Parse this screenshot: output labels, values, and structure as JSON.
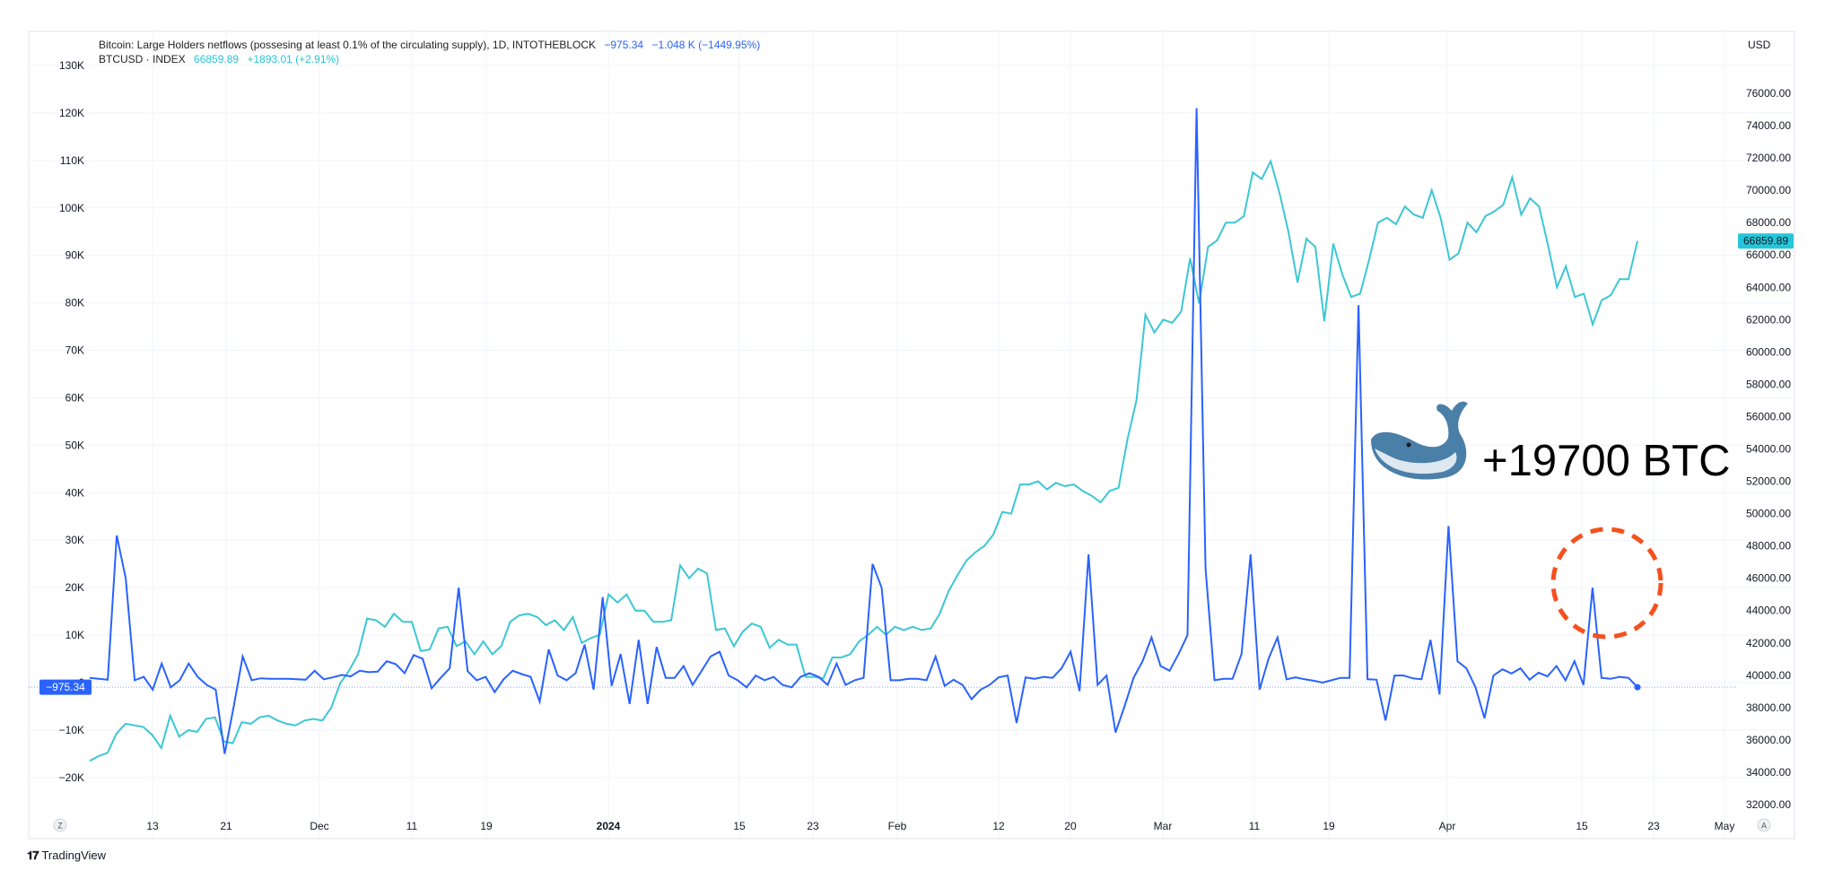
{
  "top_axis_cut_text": "",
  "legend": {
    "net_title": "Bitcoin: Large Holders netflows (possesing at least 0.1% of the circulating supply), 1D, INTOTHEBLOCK",
    "net_last": "−975.34",
    "net_change": "−1.048 K (−1449.95%)",
    "price_title": "BTCUSD · INDEX",
    "price_last": "66859.89",
    "price_change": "+1893.01 (+2.91%)"
  },
  "right_axis_unit": "USD",
  "left_last_label": "−975.34",
  "right_last_label": "66859.89",
  "annotation_text": "+19700 BTC",
  "whale_icon": "whale-icon",
  "highlight_circle": "dashed-red-circle",
  "branding": "TradingView",
  "axis_buttons": {
    "left": "Z",
    "right": "A"
  },
  "colors": {
    "netflow": "#2962ff",
    "price": "#3cc7d4",
    "circle": "#f4511e",
    "grid": "#f0f3fa",
    "axis_text": "#131722"
  },
  "chart_data": {
    "type": "line",
    "x_tick_labels": [
      "13",
      "21",
      "Dec",
      "11",
      "19",
      "2024",
      "15",
      "23",
      "Feb",
      "12",
      "20",
      "Mar",
      "11",
      "19",
      "Apr",
      "15",
      "23",
      "May"
    ],
    "left_axis": {
      "ticks": [
        "130K",
        "120K",
        "110K",
        "100K",
        "90K",
        "80K",
        "70K",
        "60K",
        "50K",
        "40K",
        "30K",
        "20K",
        "10K",
        "0",
        "−10K",
        "−20K"
      ],
      "ylim": [
        -25000,
        132000
      ]
    },
    "right_axis": {
      "ticks": [
        "76000.00",
        "74000.00",
        "72000.00",
        "70000.00",
        "68000.00",
        "66000.00",
        "64000.00",
        "62000.00",
        "60000.00",
        "58000.00",
        "56000.00",
        "54000.00",
        "52000.00",
        "50000.00",
        "48000.00",
        "46000.00",
        "44000.00",
        "42000.00",
        "40000.00",
        "38000.00",
        "36000.00",
        "34000.00",
        "32000.00"
      ],
      "ylim": [
        31500,
        76500
      ]
    },
    "series": [
      {
        "name": "Bitcoin: Large Holders netflows",
        "axis": "left",
        "values": [
          1000,
          800,
          600,
          31000,
          22000,
          500,
          1200,
          -1500,
          4000,
          -1000,
          500,
          4000,
          1200,
          -500,
          -1500,
          -15000,
          -5000,
          5500,
          500,
          900,
          800,
          800,
          800,
          700,
          600,
          2500,
          700,
          1100,
          1600,
          1300,
          2500,
          2200,
          2300,
          4500,
          3900,
          2000,
          5800,
          5000,
          -1200,
          1000,
          3000,
          20000,
          2400,
          500,
          1200,
          -2000,
          700,
          2500,
          1800,
          1200,
          -4000,
          7000,
          1500,
          500,
          2000,
          8000,
          -1500,
          18000,
          -700,
          6000,
          -4500,
          9000,
          -4500,
          7500,
          1000,
          1000,
          3500,
          -500,
          2500,
          5500,
          6500,
          1500,
          500,
          -1000,
          1500,
          500,
          1200,
          -500,
          -1000,
          1200,
          2000,
          1200,
          -500,
          4000,
          -500,
          500,
          1000,
          25000,
          20000,
          500,
          500,
          800,
          800,
          500,
          5500,
          -700,
          600,
          -500,
          -3500,
          -1500,
          -500,
          1100,
          1500,
          -8500,
          1100,
          800,
          1200,
          1000,
          3000,
          6500,
          -1800,
          27000,
          -500,
          1500,
          -10500,
          -5000,
          1000,
          4500,
          9500,
          3500,
          2500,
          6000,
          10000,
          121000,
          24000,
          500,
          800,
          800,
          6000,
          27000,
          -1500,
          5000,
          9500,
          700,
          1100,
          700,
          400,
          0,
          500,
          1000,
          1000,
          79500,
          700,
          600,
          -8000,
          1500,
          1500,
          900,
          700,
          9000,
          -2500,
          33000,
          4500,
          3000,
          -1000,
          -7500,
          1500,
          2800,
          1900,
          3000,
          600,
          2100,
          1300,
          3500,
          500,
          4500,
          -500,
          20000,
          1000,
          800,
          1200,
          1000,
          -975
        ]
      },
      {
        "name": "BTCUSD · INDEX",
        "axis": "right",
        "values": [
          34700,
          35000,
          35200,
          36400,
          37000,
          36900,
          36800,
          36300,
          35500,
          37500,
          36200,
          36600,
          36500,
          37300,
          37400,
          35900,
          35800,
          37100,
          37000,
          37400,
          37500,
          37200,
          37000,
          36900,
          37200,
          37300,
          37200,
          38000,
          39500,
          40300,
          41300,
          43500,
          43400,
          43000,
          43800,
          43300,
          43300,
          41500,
          41600,
          42900,
          43000,
          41800,
          42100,
          41300,
          42100,
          41300,
          41800,
          43300,
          43700,
          43800,
          43600,
          43100,
          43400,
          42800,
          43600,
          42000,
          42300,
          42500,
          45000,
          44500,
          45000,
          44000,
          44000,
          43300,
          43300,
          43400,
          46800,
          46000,
          46600,
          46300,
          42800,
          42900,
          41800,
          42700,
          43200,
          43000,
          41700,
          42200,
          41900,
          41900,
          39900,
          39900,
          39800,
          41100,
          41100,
          41300,
          42100,
          42500,
          43000,
          42500,
          43000,
          42800,
          43000,
          42800,
          42900,
          43800,
          45200,
          46200,
          47100,
          47600,
          48000,
          48700,
          50100,
          50000,
          51800,
          51800,
          52000,
          51500,
          51900,
          51700,
          51800,
          51400,
          51100,
          50700,
          51400,
          51600,
          54600,
          57000,
          62300,
          61200,
          62000,
          61800,
          62500,
          65800,
          63000,
          66500,
          66900,
          68000,
          68000,
          68400,
          71100,
          70700,
          71800,
          69800,
          67400,
          64300,
          67000,
          66500,
          61900,
          66700,
          64800,
          63400,
          63600,
          65700,
          68000,
          68300,
          67900,
          69000,
          68500,
          68300,
          70000,
          68300,
          65700,
          66100,
          68000,
          67400,
          68400,
          68700,
          69100,
          70800,
          68500,
          69500,
          69000,
          66600,
          64000,
          65300,
          63400,
          63600,
          61700,
          63200,
          63500,
          64500,
          64500,
          66859.89
        ]
      }
    ],
    "annotation": "+19700 BTC",
    "grid": true,
    "legend_position": "top-left"
  }
}
